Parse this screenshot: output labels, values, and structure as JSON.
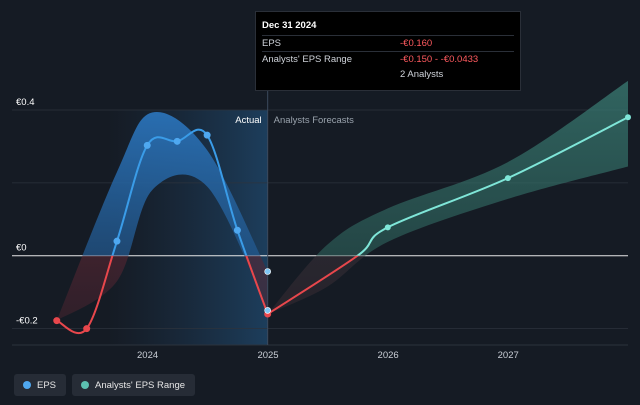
{
  "tooltip": {
    "date": "Dec 31 2024",
    "rows": [
      {
        "label": "EPS",
        "value": "-€0.160"
      },
      {
        "label": "Analysts' EPS Range",
        "value": "-€0.150 - -€0.0433"
      },
      {
        "label": "",
        "value": "2 Analysts"
      }
    ]
  },
  "section_labels": {
    "actual": "Actual",
    "forecast": "Analysts Forecasts"
  },
  "legend": [
    {
      "label": "EPS",
      "color": "#4fa8f0"
    },
    {
      "label": "Analysts' EPS Range",
      "color": "#5cc0b0"
    }
  ],
  "chart_data": {
    "type": "line",
    "x_axis_type": "date",
    "xlim": [
      "2022-11-15",
      "2027-12-31"
    ],
    "ylim": [
      -0.245,
      0.4
    ],
    "y_tick_labels": [
      {
        "value": 0.4,
        "label": "€0.4"
      },
      {
        "value": 0.0,
        "label": "€0"
      },
      {
        "value": -0.2,
        "label": "-€0.2"
      }
    ],
    "x_tick_labels": [
      {
        "date": "2024-01-01",
        "label": "2024"
      },
      {
        "date": "2025-01-01",
        "label": "2025"
      },
      {
        "date": "2026-01-01",
        "label": "2026"
      },
      {
        "date": "2027-01-01",
        "label": "2027"
      }
    ],
    "actual_forecast_split": "2024-12-31",
    "grid": "horizontal",
    "colors": {
      "eps_actual": "#3a9ce8",
      "eps_negative": "#e8474c",
      "forecast_line": "#7fe6d8",
      "actual_band": "#2a6fb3",
      "forecast_band": "#2f6b63"
    },
    "series": [
      {
        "name": "EPS",
        "points": [
          {
            "date": "2023-03-31",
            "value": -0.178
          },
          {
            "date": "2023-06-30",
            "value": -0.2
          },
          {
            "date": "2023-09-30",
            "value": 0.04
          },
          {
            "date": "2023-12-31",
            "value": 0.303
          },
          {
            "date": "2024-03-31",
            "value": 0.314
          },
          {
            "date": "2024-06-30",
            "value": 0.331
          },
          {
            "date": "2024-09-30",
            "value": 0.07
          },
          {
            "date": "2024-12-31",
            "value": -0.16
          }
        ]
      },
      {
        "name": "EPS",
        "forecast": true,
        "points": [
          {
            "date": "2024-12-31",
            "value": -0.16
          },
          {
            "date": "2025-09-30",
            "value": 0.0
          },
          {
            "date": "2025-12-31",
            "value": 0.078
          },
          {
            "date": "2026-12-31",
            "value": 0.213
          },
          {
            "date": "2027-12-31",
            "value": 0.38
          }
        ]
      },
      {
        "name": "Analysts' EPS Range",
        "actual_band": [
          {
            "date": "2023-03-31",
            "low": -0.178,
            "high": -0.178
          },
          {
            "date": "2023-09-30",
            "low": -0.07,
            "high": 0.23
          },
          {
            "date": "2024-01-15",
            "low": 0.18,
            "high": 0.393
          },
          {
            "date": "2024-06-30",
            "low": 0.19,
            "high": 0.29
          },
          {
            "date": "2024-12-31",
            "low": -0.15,
            "high": -0.0433
          }
        ],
        "forecast_band": [
          {
            "date": "2024-12-31",
            "low": -0.16,
            "high": -0.16
          },
          {
            "date": "2025-06-30",
            "low": -0.085,
            "high": 0.03
          },
          {
            "date": "2025-12-31",
            "low": 0.038,
            "high": 0.13
          },
          {
            "date": "2026-12-31",
            "low": 0.156,
            "high": 0.257
          },
          {
            "date": "2027-12-31",
            "low": 0.245,
            "high": 0.48
          }
        ]
      }
    ]
  }
}
